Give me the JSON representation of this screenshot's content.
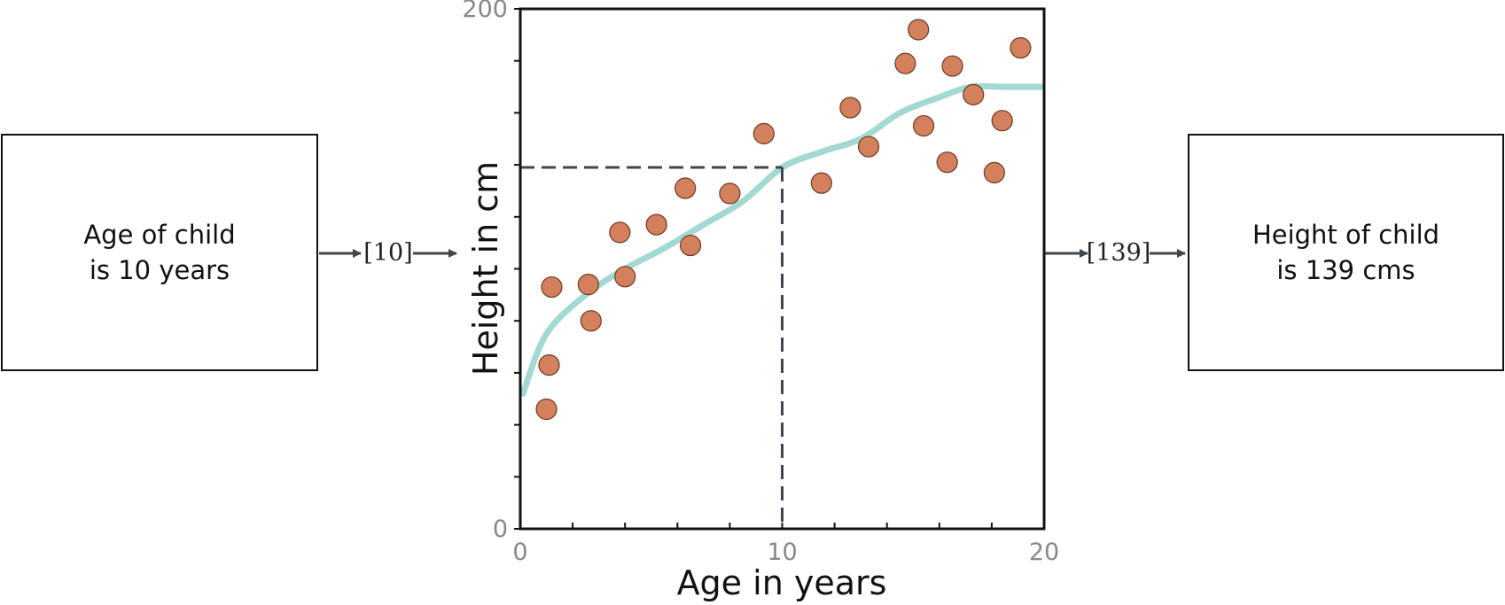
{
  "input_box": {
    "line1": "Age of child",
    "line2": "is 10 years"
  },
  "output_box": {
    "line1": "Height of child",
    "line2": "is 139 cms"
  },
  "input_vector": "[10]",
  "output_vector": "[139]",
  "chart_data": {
    "type": "scatter",
    "xlabel": "Age in years",
    "ylabel": "Height in cm",
    "xlim": [
      0,
      20
    ],
    "ylim": [
      0,
      200
    ],
    "x_ticks": [
      0,
      10,
      20
    ],
    "y_ticks": [
      0,
      200
    ],
    "point_color": "#d4805c",
    "curve_color": "#a3d9d3",
    "points": [
      {
        "x": 1.0,
        "y": 46
      },
      {
        "x": 1.1,
        "y": 63
      },
      {
        "x": 1.2,
        "y": 93
      },
      {
        "x": 2.6,
        "y": 94
      },
      {
        "x": 2.7,
        "y": 80
      },
      {
        "x": 3.8,
        "y": 114
      },
      {
        "x": 4.0,
        "y": 97
      },
      {
        "x": 5.2,
        "y": 117
      },
      {
        "x": 6.3,
        "y": 131
      },
      {
        "x": 6.5,
        "y": 109
      },
      {
        "x": 8.0,
        "y": 129
      },
      {
        "x": 9.3,
        "y": 152
      },
      {
        "x": 11.5,
        "y": 133
      },
      {
        "x": 12.6,
        "y": 162
      },
      {
        "x": 13.3,
        "y": 147
      },
      {
        "x": 14.7,
        "y": 179
      },
      {
        "x": 15.2,
        "y": 192
      },
      {
        "x": 15.4,
        "y": 155
      },
      {
        "x": 16.3,
        "y": 141
      },
      {
        "x": 16.5,
        "y": 178
      },
      {
        "x": 17.3,
        "y": 167
      },
      {
        "x": 18.1,
        "y": 137
      },
      {
        "x": 18.4,
        "y": 157
      },
      {
        "x": 19.1,
        "y": 185
      }
    ],
    "curve": [
      [
        0.1,
        52
      ],
      [
        1.0,
        75
      ],
      [
        2.5,
        90
      ],
      [
        4.0,
        100
      ],
      [
        5.5,
        108
      ],
      [
        7.0,
        117
      ],
      [
        8.5,
        126
      ],
      [
        10.0,
        139
      ],
      [
        11.5,
        145
      ],
      [
        13.0,
        150
      ],
      [
        14.5,
        160
      ],
      [
        16.0,
        166
      ],
      [
        17.2,
        170
      ],
      [
        18.5,
        170
      ],
      [
        20.0,
        170
      ]
    ],
    "highlight": {
      "x": 10,
      "y": 139
    }
  }
}
